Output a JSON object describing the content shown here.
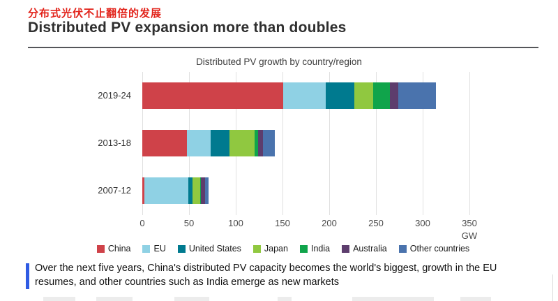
{
  "page": {
    "zh_title": "分布式光伏不止翻倍的发展",
    "en_title": "Distributed PV expansion more than doubles"
  },
  "chart_data": {
    "type": "bar",
    "orientation": "horizontal-stacked",
    "title": "Distributed PV growth by country/region",
    "categories": [
      "2019-24",
      "2013-18",
      "2007-12"
    ],
    "series": [
      {
        "name": "China",
        "color": "#cf4249",
        "values": [
          151,
          48,
          2
        ]
      },
      {
        "name": "EU",
        "color": "#8fd1e4",
        "values": [
          45,
          25,
          47
        ]
      },
      {
        "name": "United States",
        "color": "#007a8f",
        "values": [
          31,
          20,
          5
        ]
      },
      {
        "name": "Japan",
        "color": "#90c840",
        "values": [
          20,
          27,
          8
        ]
      },
      {
        "name": "India",
        "color": "#10a44b",
        "values": [
          18,
          4,
          1
        ]
      },
      {
        "name": "Australia",
        "color": "#5d3d6d",
        "values": [
          9,
          5,
          4
        ]
      },
      {
        "name": "Other countries",
        "color": "#4a73ad",
        "values": [
          40,
          13,
          4
        ]
      }
    ],
    "totals_gw": {
      "2019-24": 314,
      "2013-18": 142,
      "2007-12": 71
    },
    "xlabel": "GW",
    "xlim": [
      0,
      350
    ],
    "xticks": [
      0,
      50,
      100,
      150,
      200,
      250,
      300,
      350
    ],
    "grid": true,
    "legend_position": "bottom"
  },
  "caption": {
    "text": "Over the next five years, China's distributed PV capacity becomes the world's biggest, growth in the EU resumes, and other countries such as India emerge as new markets",
    "accent_color": "#2f5be3"
  }
}
